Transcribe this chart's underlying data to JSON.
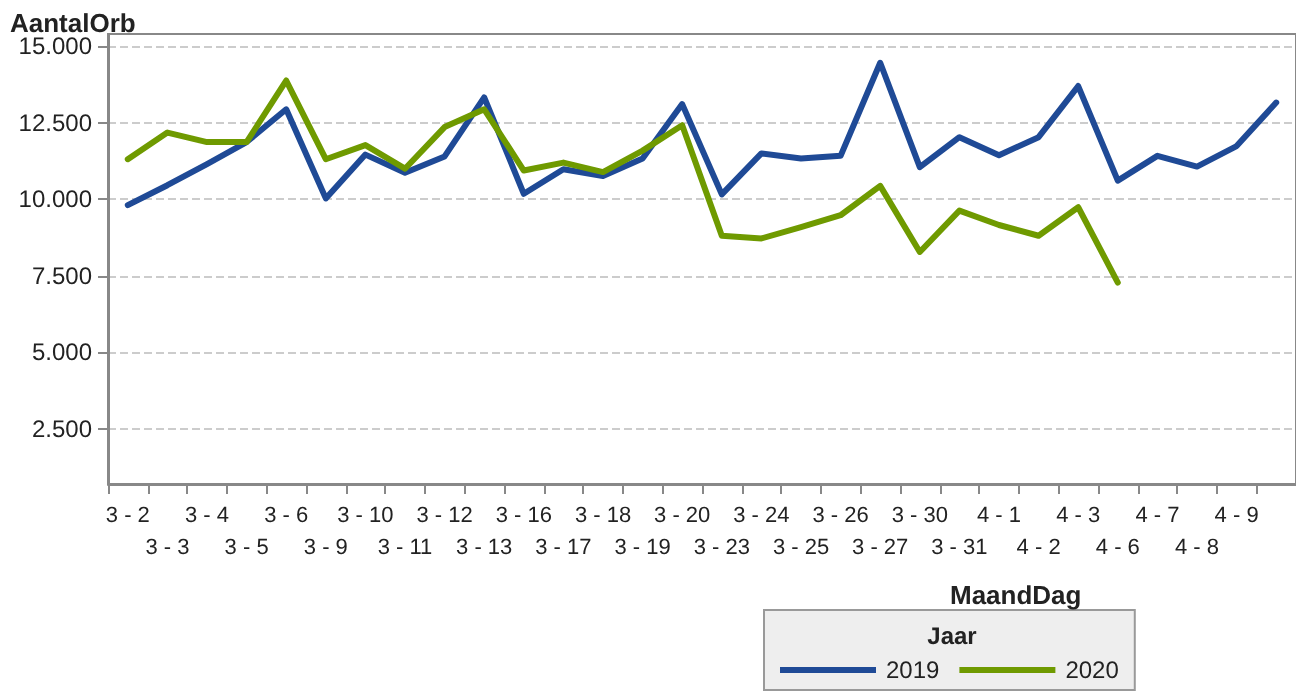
{
  "chart_data": {
    "type": "line",
    "ylabel": "AantalOrb",
    "xlabel": "MaandDag",
    "legend_title": "Jaar",
    "categories": [
      "3 - 2",
      "3 - 3",
      "3 - 4",
      "3 - 5",
      "3 - 6",
      "3 - 9",
      "3 - 10",
      "3 - 11",
      "3 - 12",
      "3 - 13",
      "3 - 16",
      "3 - 17",
      "3 - 18",
      "3 - 19",
      "3 - 20",
      "3 - 23",
      "3 - 24",
      "3 - 25",
      "3 - 26",
      "3 - 27",
      "3 - 30",
      "3 - 31",
      "4 - 1",
      "4 - 2",
      "4 - 3",
      "4 - 6",
      "4 - 7",
      "4 - 8",
      "4 - 9",
      null
    ],
    "series": [
      {
        "name": "2019",
        "color": "#1f4a96",
        "values": [
          9810,
          10460,
          11150,
          11870,
          12940,
          10030,
          11460,
          10870,
          11400,
          13330,
          10180,
          10980,
          10760,
          11330,
          13110,
          10160,
          11500,
          11330,
          11420,
          14460,
          11050,
          12030,
          11440,
          12030,
          13700,
          10610,
          11420,
          11070,
          11740,
          13160
        ]
      },
      {
        "name": "2020",
        "color": "#6f9a00",
        "values": [
          11310,
          12180,
          11870,
          11870,
          13880,
          11310,
          11770,
          11000,
          12360,
          12940,
          10940,
          11200,
          10890,
          11590,
          12420,
          8810,
          8720,
          9090,
          9480,
          10440,
          8280,
          9630,
          9160,
          8810,
          9740,
          7280,
          null,
          null,
          null,
          null
        ]
      }
    ],
    "ylim": [
      700,
      15400
    ],
    "yticks": [
      {
        "value": 2500,
        "label": "2.500"
      },
      {
        "value": 5000,
        "label": "5.000"
      },
      {
        "value": 7500,
        "label": "7.500"
      },
      {
        "value": 10000,
        "label": "10.000"
      },
      {
        "value": 12500,
        "label": "12.500"
      },
      {
        "value": 15000,
        "label": "15.000"
      }
    ],
    "grid": "y",
    "legend": "bottom right",
    "marker": "none",
    "line_style": "solid"
  }
}
